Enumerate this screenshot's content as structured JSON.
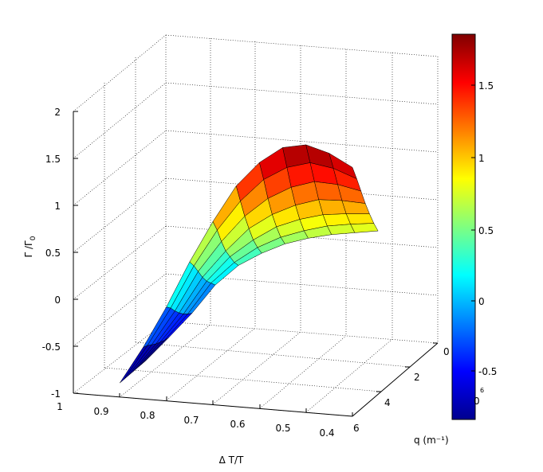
{
  "chart_data": {
    "type": "surface",
    "title": "",
    "xlabel": "Δ T/T",
    "ylabel": "q (m⁻¹)",
    "zlabel_main": "Γ /Γ",
    "zlabel_sub": "0",
    "x_ticks": [
      "1",
      "0.9",
      "0.8",
      "0.7",
      "0.6",
      "0.5",
      "0.4"
    ],
    "y_ticks": [
      "0",
      "2",
      "4",
      "6"
    ],
    "z_ticks": [
      "2",
      "1.5",
      "1",
      "0.5",
      "0",
      "-0.5",
      "-1"
    ],
    "colorbar_ticks": [
      "1.5",
      "1",
      "0.5",
      "0",
      "-0.5"
    ],
    "colorbar_exponent": "6",
    "colorbar_tail_tick": "0",
    "xlim": [
      0.4,
      1.0
    ],
    "ylim": [
      0,
      6
    ],
    "zlim": [
      -1,
      2
    ],
    "color_range": [
      -0.8,
      1.85
    ],
    "colormap": "jet",
    "grid": true,
    "surface": {
      "delta_T_over_T": [
        0.9,
        0.85,
        0.8,
        0.75,
        0.7,
        0.65,
        0.6,
        0.55,
        0.5,
        0.45,
        0.4
      ],
      "q": [
        0,
        0.3,
        0.6,
        0.9,
        1.2,
        1.5,
        1.8
      ],
      "gamma_over_gamma0": [
        [
          -0.85,
          -0.85,
          -0.85,
          -0.85,
          -0.85,
          -0.85,
          -0.85
        ],
        [
          -0.45,
          -0.47,
          -0.5,
          -0.53,
          -0.55,
          -0.57,
          -0.58
        ],
        [
          0.0,
          -0.05,
          -0.12,
          -0.18,
          -0.23,
          -0.27,
          -0.3
        ],
        [
          0.5,
          0.42,
          0.32,
          0.22,
          0.14,
          0.08,
          0.02
        ],
        [
          0.95,
          0.82,
          0.66,
          0.52,
          0.42,
          0.32,
          0.25
        ],
        [
          1.35,
          1.15,
          0.95,
          0.78,
          0.62,
          0.5,
          0.4
        ],
        [
          1.62,
          1.4,
          1.16,
          0.95,
          0.78,
          0.63,
          0.52
        ],
        [
          1.8,
          1.55,
          1.3,
          1.07,
          0.88,
          0.72,
          0.6
        ],
        [
          1.85,
          1.62,
          1.38,
          1.15,
          0.95,
          0.79,
          0.66
        ],
        [
          1.78,
          1.58,
          1.37,
          1.16,
          0.98,
          0.83,
          0.7
        ],
        [
          1.65,
          1.49,
          1.32,
          1.15,
          1.0,
          0.86,
          0.74
        ]
      ]
    }
  }
}
